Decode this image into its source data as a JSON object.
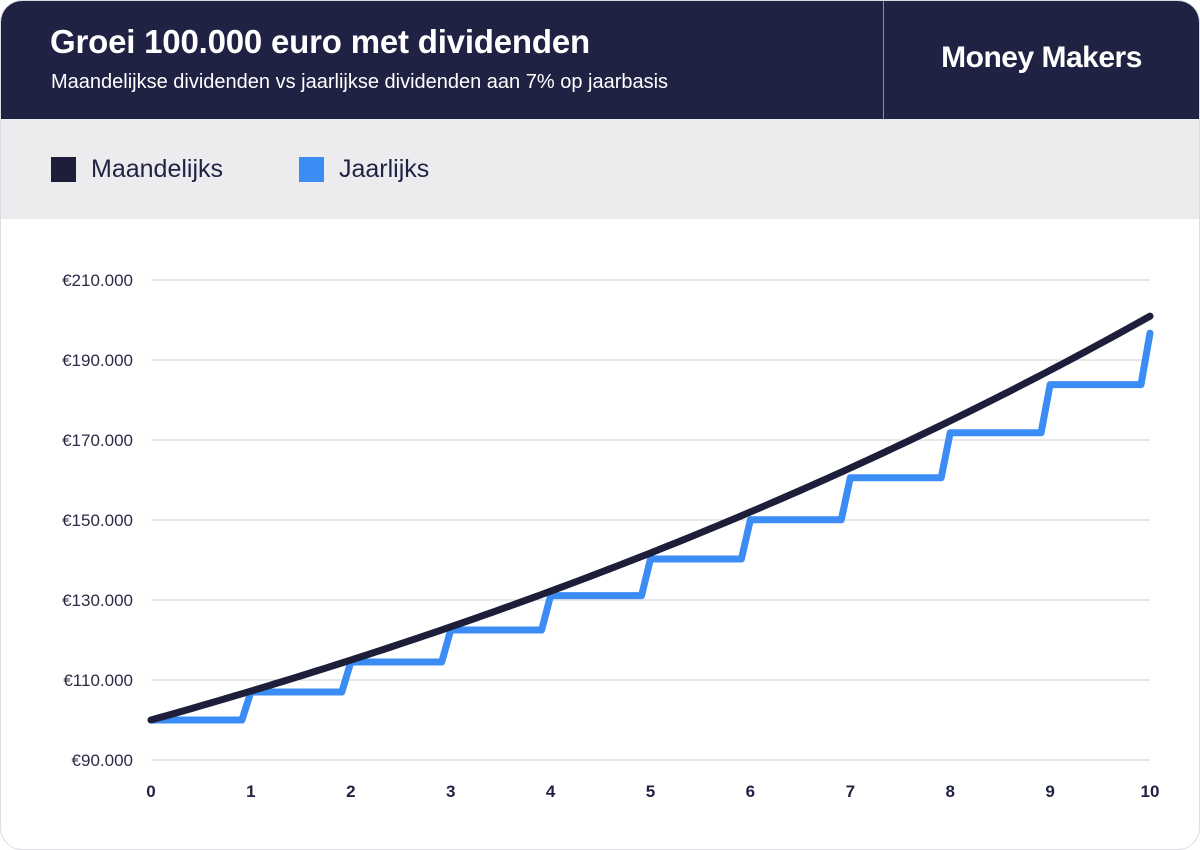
{
  "header": {
    "title": "Groei 100.000 euro met dividenden",
    "subtitle": "Maandelijkse dividenden vs jaarlijkse dividenden aan 7% op jaarbasis",
    "brand": "Money Makers"
  },
  "legend": [
    {
      "label": "Maandelijks",
      "color": "#1c1e3a"
    },
    {
      "label": "Jaarlijks",
      "color": "#3b8cf5"
    }
  ],
  "chart_data": {
    "type": "line",
    "title": "Groei 100.000 euro met dividenden",
    "subtitle": "Maandelijkse dividenden vs jaarlijkse dividenden aan 7% op jaarbasis",
    "xlabel": "",
    "ylabel": "",
    "xlim": [
      0,
      10
    ],
    "ylim": [
      90000,
      210000
    ],
    "x_ticks": [
      0,
      1,
      2,
      3,
      4,
      5,
      6,
      7,
      8,
      9,
      10
    ],
    "x_tick_labels": [
      "0",
      "1",
      "2",
      "3",
      "4",
      "5",
      "6",
      "7",
      "8",
      "9",
      "10"
    ],
    "y_ticks": [
      90000,
      110000,
      130000,
      150000,
      170000,
      190000,
      210000
    ],
    "y_tick_labels": [
      "€90.000",
      "€110.000",
      "€130.000",
      "€150.000",
      "€170.000",
      "€190.000",
      "€210.000"
    ],
    "grid": "horizontal",
    "legend_position": "top-left",
    "series": [
      {
        "name": "Maandelijks",
        "color": "#1c1e3a",
        "style": "smooth",
        "x": [
          0,
          1,
          2,
          3,
          4,
          5,
          6,
          7,
          8,
          9,
          10
        ],
        "values": [
          100000,
          107229,
          114981,
          123293,
          132206,
          141763,
          152011,
          162999,
          174782,
          187417,
          200966
        ]
      },
      {
        "name": "Jaarlijks",
        "color": "#3b8cf5",
        "style": "step",
        "x": [
          0,
          1,
          2,
          3,
          4,
          5,
          6,
          7,
          8,
          9,
          10
        ],
        "values": [
          100000,
          107000,
          114490,
          122504,
          131080,
          140255,
          150073,
          160578,
          171819,
          183846,
          196715
        ]
      }
    ]
  }
}
